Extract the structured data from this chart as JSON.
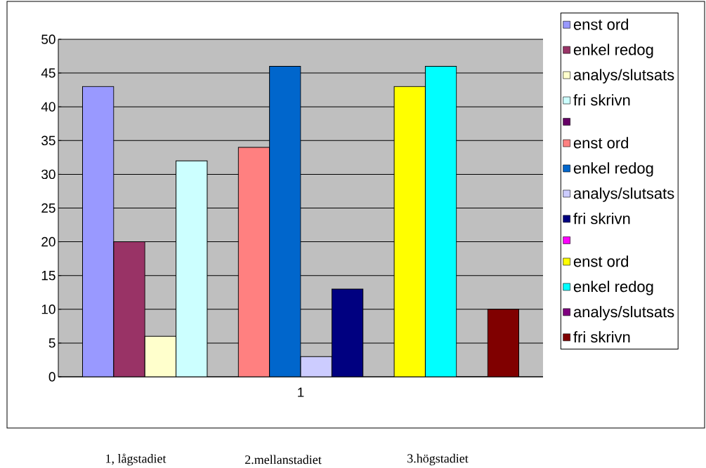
{
  "chart_data": {
    "type": "bar",
    "categories": [
      "1"
    ],
    "series": [
      {
        "name": "enst ord",
        "color": "#9999ff",
        "values": [
          43
        ]
      },
      {
        "name": "enkel redog",
        "color": "#993366",
        "values": [
          20
        ]
      },
      {
        "name": "analys/slutsats",
        "color": "#ffffcc",
        "values": [
          6
        ]
      },
      {
        "name": "fri skrivn",
        "color": "#ccffff",
        "values": [
          32
        ]
      },
      {
        "color": "#660066",
        "values": [
          null
        ]
      },
      {
        "name": "enst ord",
        "color": "#ff8080",
        "values": [
          34
        ]
      },
      {
        "name": "enkel redog",
        "color": "#0066cc",
        "values": [
          46
        ]
      },
      {
        "name": "analys/slutsats",
        "color": "#ccccff",
        "values": [
          3
        ]
      },
      {
        "name": "fri skrivn",
        "color": "#000080",
        "values": [
          13
        ]
      },
      {
        "color": "#ff00ff",
        "values": [
          null
        ]
      },
      {
        "name": "enst ord",
        "color": "#ffff00",
        "values": [
          43
        ]
      },
      {
        "name": "enkel redog",
        "color": "#00ffff",
        "values": [
          46
        ]
      },
      {
        "name": "analys/slutsats",
        "color": "#800080",
        "values": [
          0
        ]
      },
      {
        "name": "fri skrivn",
        "color": "#800000",
        "values": [
          10
        ]
      }
    ],
    "ylim": [
      0,
      50
    ],
    "yticks": [
      0,
      5,
      10,
      15,
      20,
      25,
      30,
      35,
      40,
      45,
      50
    ],
    "grid": "y",
    "legend": "right",
    "annotations": [
      "1, lågstadiet",
      "2.mellanstadiet",
      "3.högstadiet"
    ]
  }
}
